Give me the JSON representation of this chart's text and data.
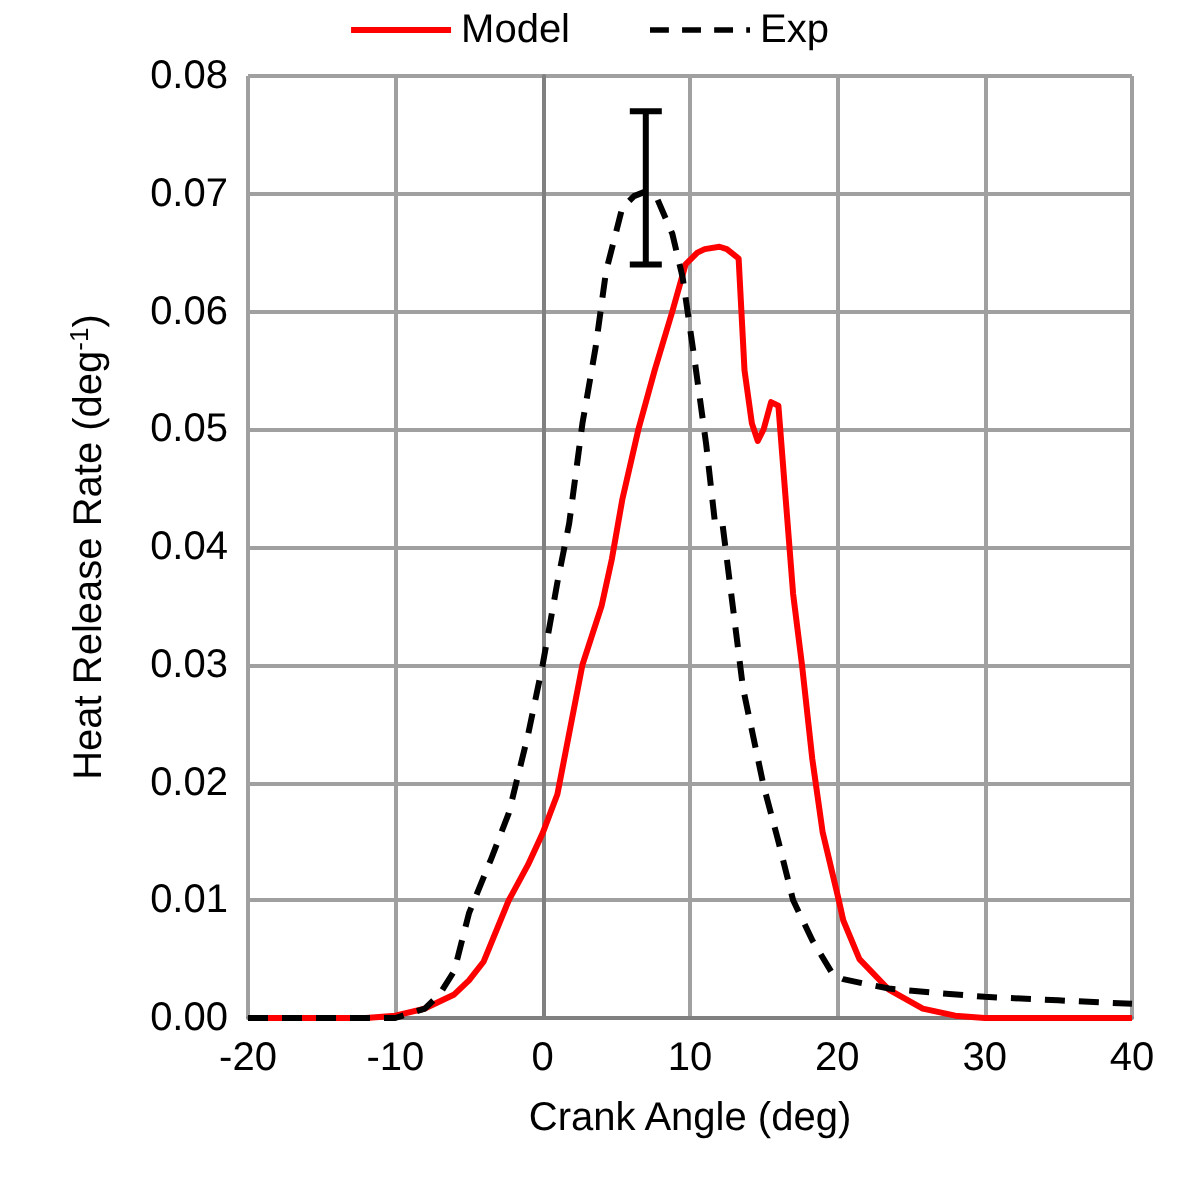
{
  "chart_data": {
    "type": "line",
    "xlabel": "Crank Angle (deg)",
    "ylabel": "Heat Release Rate (deg$^{-1}$)",
    "xlim": [
      -20,
      40
    ],
    "xticks": [
      -20,
      -10,
      0,
      10,
      20,
      30,
      40
    ],
    "ylim": [
      0,
      0.08
    ],
    "yticks": [
      {
        "value": 0,
        "label": "0.00"
      },
      {
        "value": 0.01,
        "label": "0.01"
      },
      {
        "value": 0.02,
        "label": "0.02"
      },
      {
        "value": 0.03,
        "label": "0.03"
      },
      {
        "value": 0.04,
        "label": "0.04"
      },
      {
        "value": 0.05,
        "label": "0.05"
      },
      {
        "value": 0.06,
        "label": "0.06"
      },
      {
        "value": 0.07,
        "label": "0.07"
      },
      {
        "value": 0.08,
        "label": "0.08"
      }
    ],
    "grid": true,
    "legend": "top",
    "marker": "none",
    "series": [
      {
        "name": "Model",
        "color": "#ff0000",
        "line_style": "solid",
        "x": [
          -20,
          -12,
          -10,
          -8,
          -6,
          -5,
          -4,
          -2.3,
          -1,
          0,
          1,
          2.7,
          4,
          4.7,
          5.4,
          6.5,
          7.6,
          8.8,
          9.7,
          10.5,
          11,
          12,
          12.5,
          13.3,
          13.7,
          14.2,
          14.6,
          15,
          15.5,
          16,
          16.5,
          17,
          17.6,
          18.3,
          19,
          20.1,
          20.4,
          21.5,
          23.5,
          25.8,
          28,
          30,
          35,
          40
        ],
        "values": [
          0,
          0,
          0.0002,
          0.0008,
          0.002,
          0.0032,
          0.0048,
          0.01,
          0.013,
          0.0157,
          0.019,
          0.03,
          0.035,
          0.039,
          0.044,
          0.05,
          0.055,
          0.06,
          0.064,
          0.065,
          0.0653,
          0.0655,
          0.0653,
          0.0645,
          0.055,
          0.0505,
          0.049,
          0.05,
          0.0523,
          0.052,
          0.044,
          0.036,
          0.03,
          0.022,
          0.0158,
          0.01,
          0.0083,
          0.005,
          0.0024,
          0.0008,
          0.0002,
          0,
          0,
          0
        ]
      },
      {
        "name": "Exp",
        "color": "#000000",
        "line_style": "dashed",
        "x": [
          -20,
          -12,
          -10,
          -8,
          -7,
          -6,
          -5,
          -3.5,
          -2.3,
          -1,
          0,
          1,
          1.8,
          2.7,
          3.6,
          4.3,
          5.4,
          6.2,
          7,
          7.8,
          8.8,
          9.5,
          10.3,
          11.1,
          11.7,
          12.2,
          13.6,
          15,
          16,
          17,
          18.3,
          19.7,
          20.4,
          21.5,
          23.5,
          27,
          30,
          35,
          40
        ],
        "values": [
          0,
          0,
          0,
          0.0008,
          0.002,
          0.004,
          0.0089,
          0.0135,
          0.0174,
          0.024,
          0.03,
          0.037,
          0.042,
          0.0505,
          0.057,
          0.0634,
          0.0688,
          0.0698,
          0.0702,
          0.0695,
          0.0666,
          0.0629,
          0.056,
          0.0487,
          0.042,
          0.042,
          0.028,
          0.0197,
          0.015,
          0.01,
          0.0066,
          0.0037,
          0.0033,
          0.003,
          0.0025,
          0.0021,
          0.0018,
          0.0015,
          0.0012
        ],
        "errors": [
          null,
          null,
          null,
          null,
          null,
          null,
          null,
          null,
          null,
          null,
          null,
          null,
          null,
          null,
          null,
          null,
          null,
          null,
          [
            0.064,
            0.077
          ],
          null,
          null,
          null,
          null,
          null,
          null,
          null,
          null,
          null,
          null,
          null,
          null,
          null,
          null,
          null,
          null,
          null,
          null,
          null,
          null
        ]
      }
    ]
  }
}
